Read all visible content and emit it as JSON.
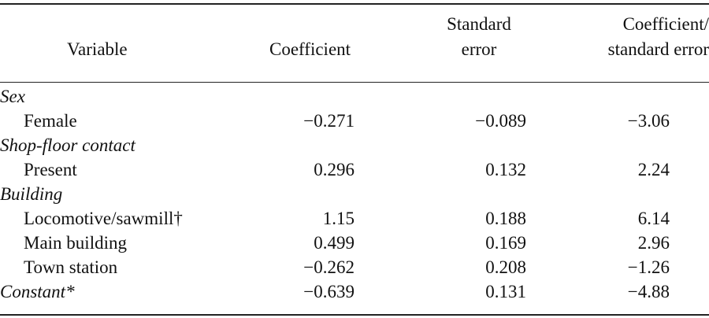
{
  "table": {
    "headers": {
      "variable": "Variable",
      "coefficient": "Coefficient",
      "se_line1": "Standard",
      "se_line2": "error",
      "ratio_line1": "Coefficient/",
      "ratio_line2": "standard error"
    },
    "groups": [
      {
        "label": "Sex",
        "rows": [
          {
            "variable": "Female",
            "coefficient": "−0.271",
            "standard_error": "−0.089",
            "ratio": "−3.06"
          }
        ]
      },
      {
        "label": "Shop-floor contact",
        "rows": [
          {
            "variable": "Present",
            "coefficient": "0.296",
            "standard_error": "0.132",
            "ratio": "2.24"
          }
        ]
      },
      {
        "label": "Building",
        "rows": [
          {
            "variable": "Locomotive/sawmill†",
            "coefficient": "1.15",
            "standard_error": "0.188",
            "ratio": "6.14"
          },
          {
            "variable": "Main building",
            "coefficient": "0.499",
            "standard_error": "0.169",
            "ratio": "2.96"
          },
          {
            "variable": "Town station",
            "coefficient": "−0.262",
            "standard_error": "0.208",
            "ratio": "−1.26"
          }
        ]
      }
    ],
    "constant": {
      "label": "Constant*",
      "coefficient": "−0.639",
      "standard_error": "0.131",
      "ratio": "−4.88"
    }
  }
}
